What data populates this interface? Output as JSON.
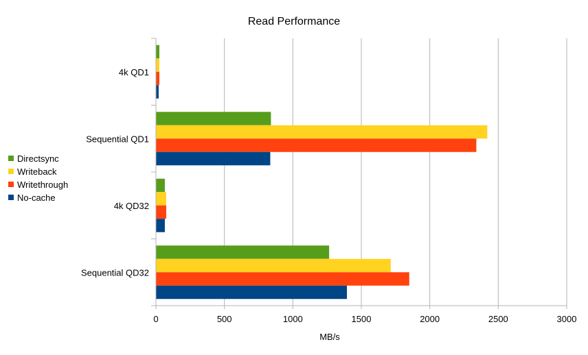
{
  "chart_data": {
    "type": "bar",
    "orientation": "horizontal",
    "title": "Read Performance",
    "xlabel": "MB/s",
    "ylabel": "",
    "categories": [
      "4k QD1",
      "Sequential QD1",
      "4k QD32",
      "Sequential QD32"
    ],
    "series": [
      {
        "name": "Directsync",
        "color": "#579D1C",
        "values": [
          25,
          840,
          65,
          1265
        ]
      },
      {
        "name": "Writeback",
        "color": "#FFD320",
        "values": [
          25,
          2420,
          75,
          1715
        ]
      },
      {
        "name": "Writethrough",
        "color": "#FF420E",
        "values": [
          25,
          2340,
          75,
          1850
        ]
      },
      {
        "name": "No-cache",
        "color": "#004586",
        "values": [
          20,
          835,
          65,
          1395
        ]
      }
    ],
    "xlim": [
      0,
      3000
    ],
    "xticks": [
      0,
      500,
      1000,
      1500,
      2000,
      2500,
      3000
    ],
    "grid": true,
    "legend_position": "left"
  }
}
